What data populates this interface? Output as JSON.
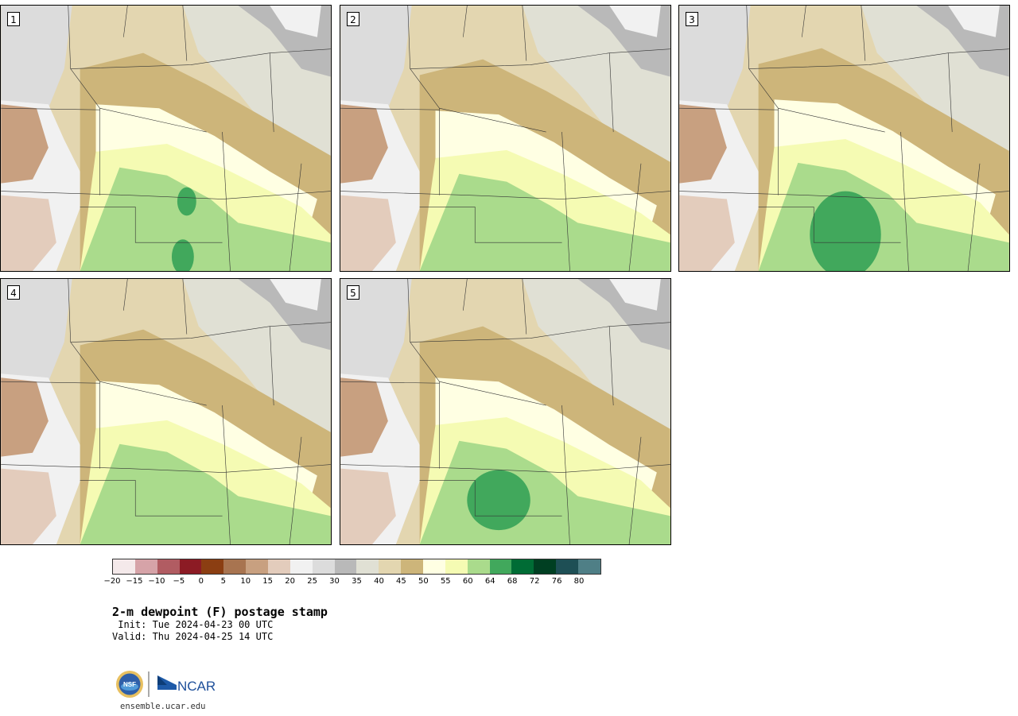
{
  "panels": [
    {
      "label": "1"
    },
    {
      "label": "2"
    },
    {
      "label": "3"
    },
    {
      "label": "4"
    },
    {
      "label": "5"
    }
  ],
  "colorbar": {
    "colors": [
      "#f4e9ea",
      "#d6a3a8",
      "#b15c62",
      "#8c1b24",
      "#8b3e12",
      "#a87450",
      "#c8a080",
      "#e3ccbc",
      "#f1f1f1",
      "#dcdcdc",
      "#b9b9b9",
      "#e0e0d4",
      "#e3d6b0",
      "#cdb57a",
      "#ffffe3",
      "#f5fbb3",
      "#aadb8c",
      "#41a85c",
      "#006c35",
      "#003f22",
      "#1e4f55",
      "#4f7f86"
    ],
    "ticks": [
      "−20",
      "−15",
      "−10",
      "−5",
      "0",
      "5",
      "10",
      "15",
      "20",
      "25",
      "30",
      "35",
      "40",
      "45",
      "50",
      "55",
      "60",
      "64",
      "68",
      "72",
      "76",
      "80"
    ]
  },
  "title": "2-m dewpoint (F) postage stamp",
  "init": " Init: Tue 2024-04-23 00 UTC",
  "valid": "Valid: Thu 2024-04-25 14 UTC",
  "logo": {
    "nsf": "NSF",
    "ncar": "NCAR"
  },
  "site": "ensemble.ucar.edu"
}
